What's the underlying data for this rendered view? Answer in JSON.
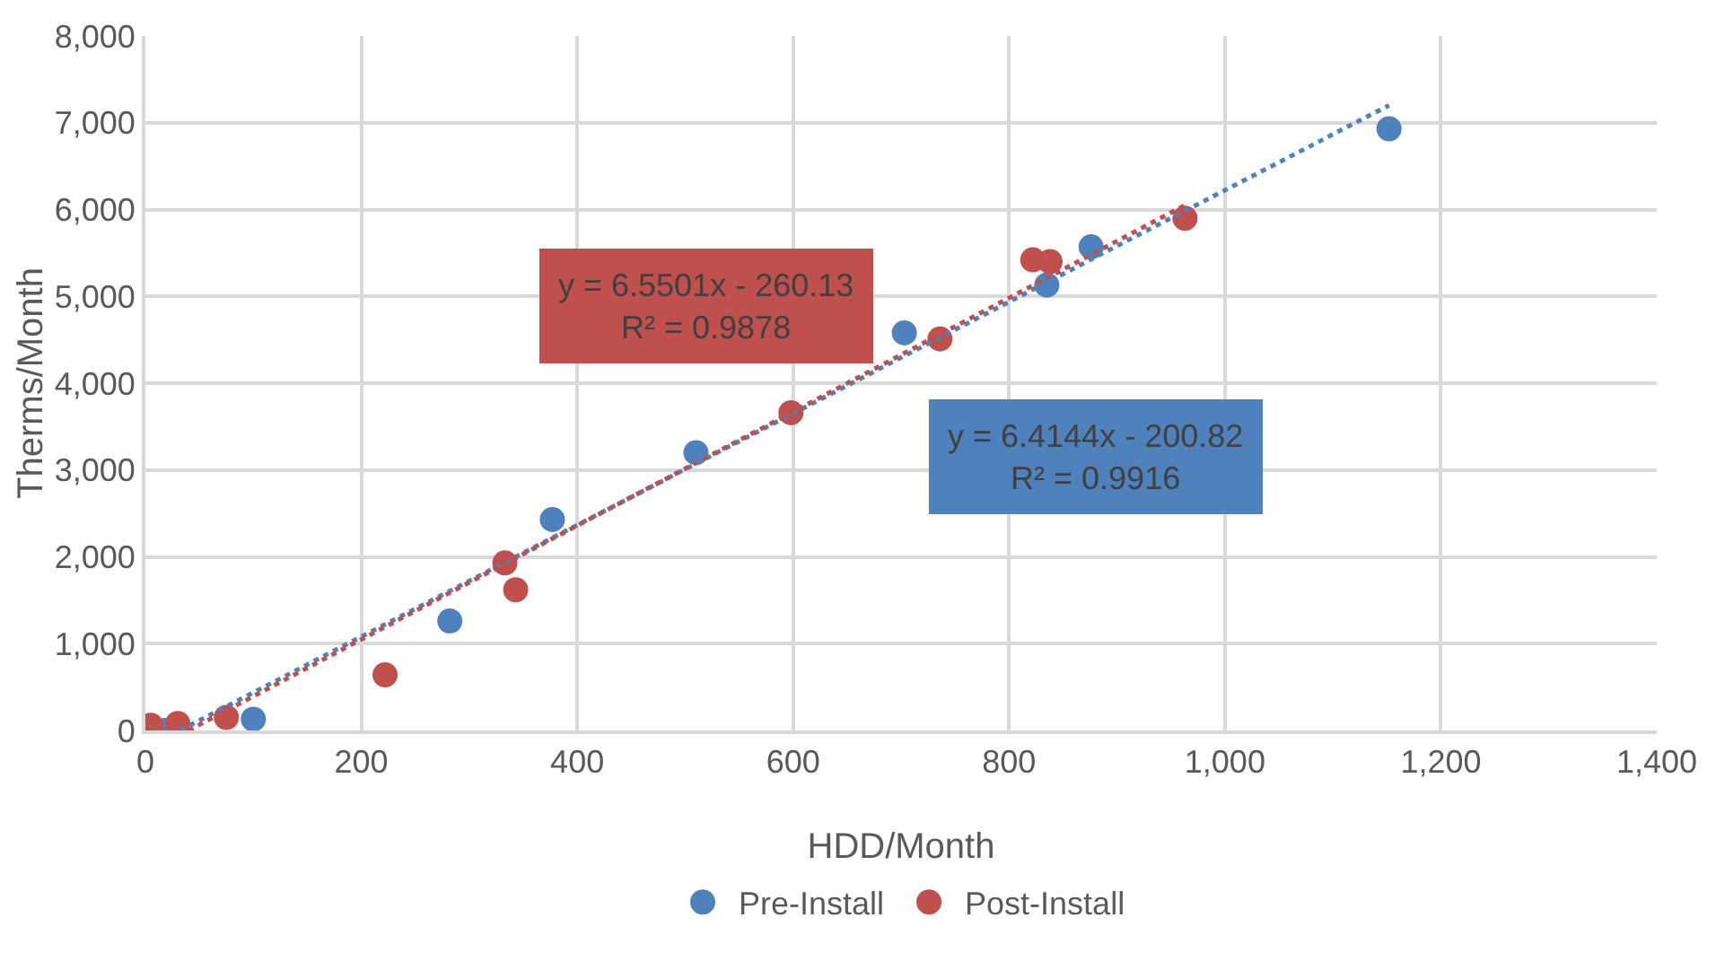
{
  "chart_data": {
    "type": "scatter",
    "xlabel": "HDD/Month",
    "ylabel": "Therms/Month",
    "xlim": [
      0,
      1400
    ],
    "xticks": [
      {
        "value": 0,
        "label": "0"
      },
      {
        "value": 200,
        "label": "200"
      },
      {
        "value": 400,
        "label": "400"
      },
      {
        "value": 600,
        "label": "600"
      },
      {
        "value": 800,
        "label": "800"
      },
      {
        "value": 1000,
        "label": "1,000"
      },
      {
        "value": 1200,
        "label": "1,200"
      },
      {
        "value": 1400,
        "label": "1,400"
      }
    ],
    "ylim": [
      0,
      8000
    ],
    "yticks": [
      {
        "value": 0,
        "label": "0"
      },
      {
        "value": 1000,
        "label": "1,000"
      },
      {
        "value": 2000,
        "label": "2,000"
      },
      {
        "value": 3000,
        "label": "3,000"
      },
      {
        "value": 4000,
        "label": "4,000"
      },
      {
        "value": 5000,
        "label": "5,000"
      },
      {
        "value": 6000,
        "label": "6,000"
      },
      {
        "value": 7000,
        "label": "7,000"
      },
      {
        "value": 8000,
        "label": "8,000"
      }
    ],
    "grid": true,
    "legend": "bottom",
    "marker": "circle",
    "series": [
      {
        "name": "Pre-Install",
        "color": "#4f81bd",
        "x": [
          18,
          100,
          282,
          377,
          510,
          703,
          835,
          876,
          1152
        ],
        "values": [
          0,
          130,
          1260,
          2430,
          3200,
          4580,
          5130,
          5570,
          6930
        ]
      },
      {
        "name": "Post-Install",
        "color": "#c0504d",
        "x": [
          5,
          30,
          75,
          222,
          333,
          343,
          598,
          736,
          822,
          838,
          963
        ],
        "values": [
          60,
          80,
          150,
          640,
          1930,
          1620,
          3660,
          4510,
          5420,
          5400,
          5900
        ]
      },
      {
        "type": "line",
        "color": "#4f81bd",
        "line_style": "dotted",
        "marker": "none",
        "x": [
          32,
          1152
        ],
        "values": [
          0,
          7200
        ]
      },
      {
        "type": "line",
        "color": "#c0504d",
        "line_style": "dotted",
        "marker": "none",
        "x": [
          40,
          963
        ],
        "values": [
          0,
          6050
        ]
      }
    ],
    "annotations": [
      "y = 6.5501x - 260.13\nR² = 0.9878",
      "y = 6.4144x - 200.82\nR² = 0.9916"
    ]
  }
}
